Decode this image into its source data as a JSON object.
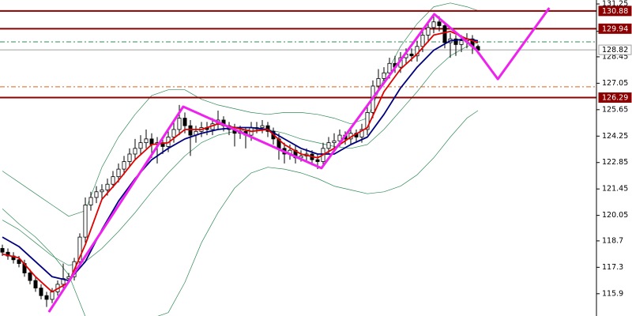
{
  "chart_data": {
    "type": "candlestick",
    "ylim": [
      114.72,
      131.46
    ],
    "xlim": [
      -0.43,
      107.43
    ],
    "yticks": [
      131.25,
      129.8,
      128.45,
      127.05,
      125.65,
      124.25,
      122.85,
      121.45,
      120.05,
      118.7,
      117.3,
      115.9
    ],
    "up_color": "#ffffff",
    "down_color": "#000000",
    "outline_color": "#000000",
    "ohlc": [
      [
        118.3,
        118.5,
        117.9,
        118.1
      ],
      [
        118.1,
        118.3,
        117.7,
        117.9
      ],
      [
        117.9,
        118.1,
        117.5,
        117.7
      ],
      [
        117.7,
        117.9,
        117.3,
        117.5
      ],
      [
        117.5,
        117.7,
        116.8,
        117.0
      ],
      [
        117.0,
        117.2,
        116.4,
        116.6
      ],
      [
        116.6,
        116.8,
        116.0,
        116.2
      ],
      [
        116.2,
        116.4,
        115.6,
        115.8
      ],
      [
        115.8,
        116.0,
        115.2,
        115.6
      ],
      [
        115.6,
        116.2,
        115.4,
        116.0
      ],
      [
        116.0,
        116.6,
        115.8,
        116.4
      ],
      [
        116.4,
        117.5,
        116.2,
        116.7
      ],
      [
        116.7,
        117.0,
        116.5,
        116.8
      ],
      [
        116.8,
        117.8,
        116.6,
        117.6
      ],
      [
        117.6,
        119.1,
        117.4,
        118.9
      ],
      [
        118.9,
        121.0,
        118.6,
        120.6
      ],
      [
        120.6,
        121.3,
        120.3,
        121.0
      ],
      [
        121.0,
        121.6,
        120.7,
        121.3
      ],
      [
        121.3,
        121.7,
        120.9,
        121.4
      ],
      [
        121.4,
        122.0,
        121.1,
        121.7
      ],
      [
        121.7,
        122.4,
        121.5,
        122.1
      ],
      [
        122.1,
        122.8,
        121.8,
        122.5
      ],
      [
        122.5,
        123.2,
        122.2,
        122.9
      ],
      [
        122.9,
        123.6,
        122.6,
        123.3
      ],
      [
        123.3,
        124.1,
        123.0,
        123.6
      ],
      [
        123.6,
        124.3,
        123.3,
        123.9
      ],
      [
        123.9,
        124.6,
        123.6,
        124.1
      ],
      [
        124.1,
        124.4,
        123.1,
        123.8
      ],
      [
        123.8,
        124.2,
        122.8,
        123.9
      ],
      [
        123.9,
        124.1,
        123.3,
        123.7
      ],
      [
        123.7,
        124.5,
        123.4,
        124.2
      ],
      [
        124.2,
        125.0,
        123.9,
        124.6
      ],
      [
        124.6,
        125.9,
        124.3,
        125.2
      ],
      [
        125.2,
        125.5,
        124.4,
        124.8
      ],
      [
        124.8,
        125.1,
        123.2,
        124.3
      ],
      [
        124.3,
        124.8,
        123.9,
        124.5
      ],
      [
        124.5,
        125.0,
        124.2,
        124.7
      ],
      [
        124.7,
        125.0,
        124.3,
        124.6
      ],
      [
        124.6,
        125.2,
        124.3,
        124.9
      ],
      [
        124.9,
        125.6,
        124.6,
        125.1
      ],
      [
        125.1,
        125.3,
        124.5,
        124.8
      ],
      [
        124.8,
        125.0,
        124.3,
        124.6
      ],
      [
        124.6,
        124.9,
        123.7,
        124.4
      ],
      [
        124.4,
        124.8,
        124.1,
        124.5
      ],
      [
        124.5,
        124.7,
        123.6,
        124.3
      ],
      [
        124.3,
        125.0,
        124.0,
        124.7
      ],
      [
        124.7,
        125.0,
        124.4,
        124.7
      ],
      [
        124.7,
        125.1,
        124.4,
        124.8
      ],
      [
        124.8,
        125.0,
        124.2,
        124.5
      ],
      [
        124.5,
        124.7,
        123.8,
        124.1
      ],
      [
        124.1,
        124.4,
        123.0,
        123.6
      ],
      [
        123.6,
        123.9,
        122.8,
        123.3
      ],
      [
        123.3,
        123.8,
        123.0,
        123.5
      ],
      [
        123.5,
        123.8,
        122.8,
        123.1
      ],
      [
        123.1,
        123.5,
        122.9,
        123.2
      ],
      [
        123.2,
        123.6,
        122.9,
        123.3
      ],
      [
        123.3,
        123.5,
        122.7,
        123.0
      ],
      [
        123.0,
        123.3,
        122.5,
        122.9
      ],
      [
        122.9,
        123.9,
        122.7,
        123.6
      ],
      [
        123.6,
        124.2,
        123.3,
        123.9
      ],
      [
        123.9,
        124.4,
        123.6,
        124.0
      ],
      [
        124.0,
        124.6,
        123.7,
        124.3
      ],
      [
        124.3,
        124.5,
        123.8,
        124.1
      ],
      [
        124.1,
        124.7,
        123.8,
        124.4
      ],
      [
        124.4,
        124.6,
        123.9,
        124.2
      ],
      [
        124.2,
        124.9,
        123.9,
        124.6
      ],
      [
        124.6,
        125.8,
        124.3,
        125.5
      ],
      [
        125.5,
        127.2,
        125.2,
        126.9
      ],
      [
        126.9,
        127.8,
        126.6,
        127.3
      ],
      [
        127.3,
        127.9,
        127.0,
        127.6
      ],
      [
        127.6,
        128.4,
        127.3,
        128.1
      ],
      [
        128.1,
        128.5,
        127.6,
        127.9
      ],
      [
        127.9,
        128.7,
        127.6,
        128.4
      ],
      [
        128.4,
        128.9,
        128.1,
        128.6
      ],
      [
        128.6,
        128.9,
        128.2,
        128.5
      ],
      [
        128.5,
        129.3,
        128.2,
        129.0
      ],
      [
        129.0,
        129.9,
        128.7,
        129.6
      ],
      [
        129.6,
        130.3,
        129.3,
        130.0
      ],
      [
        130.0,
        130.7,
        129.7,
        130.3
      ],
      [
        130.3,
        130.6,
        129.8,
        130.1
      ],
      [
        130.1,
        130.3,
        128.9,
        129.2
      ],
      [
        129.2,
        129.7,
        128.4,
        129.4
      ],
      [
        129.4,
        129.6,
        128.5,
        129.1
      ],
      [
        129.1,
        129.6,
        128.7,
        129.3
      ],
      [
        129.3,
        129.7,
        128.9,
        129.4
      ],
      [
        129.4,
        129.6,
        128.6,
        129.0
      ],
      [
        129.0,
        129.1,
        128.6,
        128.8
      ]
    ],
    "lines": [
      {
        "color": "#2e8b57",
        "width": 0.7,
        "x": [
          0,
          3,
          6,
          9,
          12,
          15,
          18,
          21,
          24,
          27,
          30,
          33,
          36,
          39,
          42,
          45,
          48,
          51,
          54,
          57,
          60,
          63,
          66,
          69,
          72,
          75,
          78,
          81,
          84,
          86
        ],
        "values": [
          122.4,
          121.8,
          121.2,
          120.6,
          120.0,
          120.3,
          122.6,
          124.2,
          125.4,
          126.4,
          126.7,
          126.7,
          126.2,
          125.9,
          125.7,
          125.5,
          125.4,
          125.5,
          125.5,
          125.4,
          125.2,
          124.9,
          125.2,
          127.3,
          129.0,
          130.2,
          131.1,
          131.3,
          131.1,
          130.9
        ]
      },
      {
        "color": "#2e8b57",
        "width": 0.7,
        "x": [
          0,
          3,
          6,
          9,
          12,
          15,
          18,
          21,
          24,
          27,
          30,
          33,
          36,
          39,
          42,
          45,
          48,
          51,
          54,
          57,
          60,
          63,
          66,
          69,
          72,
          75,
          78,
          81,
          84,
          86
        ],
        "values": [
          119.8,
          119.3,
          118.6,
          117.9,
          117.4,
          117.6,
          118.3,
          119.2,
          120.2,
          121.3,
          122.3,
          123.2,
          123.9,
          124.3,
          124.5,
          124.6,
          124.6,
          124.4,
          124.1,
          123.9,
          123.7,
          123.6,
          123.8,
          124.6,
          125.6,
          126.6,
          127.7,
          128.5,
          129.0,
          129.2
        ]
      },
      {
        "color": "#2e8b57",
        "width": 0.7,
        "x": [
          0,
          3,
          6,
          9,
          12,
          15,
          18,
          21,
          24,
          27,
          30,
          33,
          36,
          39,
          42,
          45,
          48,
          51,
          54,
          57,
          60,
          63,
          66,
          69,
          72,
          75,
          78,
          81,
          84,
          86
        ],
        "values": [
          120.4,
          119.6,
          118.9,
          118.0,
          116.9,
          114.7,
          114.3,
          114.3,
          114.4,
          114.6,
          114.9,
          116.5,
          118.6,
          120.2,
          121.5,
          122.3,
          122.6,
          122.5,
          122.3,
          122.0,
          121.6,
          121.4,
          121.2,
          121.3,
          121.6,
          122.2,
          123.1,
          124.2,
          125.2,
          125.6
        ]
      },
      {
        "color": "#000080",
        "width": 1.8,
        "x": [
          0,
          3,
          6,
          9,
          12,
          15,
          18,
          21,
          24,
          27,
          30,
          33,
          36,
          39,
          42,
          45,
          48,
          51,
          54,
          57,
          60,
          63,
          66,
          69,
          72,
          75,
          78,
          81,
          84,
          86
        ],
        "values": [
          118.9,
          118.4,
          117.6,
          116.8,
          116.6,
          117.6,
          119.3,
          120.8,
          122.0,
          123.0,
          123.6,
          124.1,
          124.4,
          124.6,
          124.7,
          124.7,
          124.6,
          124.1,
          123.6,
          123.3,
          123.3,
          123.8,
          124.2,
          125.4,
          126.8,
          127.9,
          128.8,
          129.3,
          129.4,
          129.3
        ]
      },
      {
        "color": "#e00000",
        "width": 1.8,
        "x": [
          0,
          3,
          6,
          9,
          12,
          15,
          18,
          21,
          24,
          27,
          30,
          33,
          36,
          39,
          42,
          45,
          48,
          51,
          54,
          57,
          60,
          63,
          66,
          69,
          72,
          75,
          78,
          81,
          84,
          86
        ],
        "values": [
          118.0,
          117.8,
          116.8,
          116.0,
          116.5,
          118.5,
          120.9,
          121.9,
          123.0,
          123.8,
          123.9,
          124.6,
          124.6,
          124.9,
          124.7,
          124.5,
          124.6,
          123.8,
          123.3,
          123.1,
          123.6,
          124.2,
          124.7,
          126.6,
          127.8,
          128.6,
          129.6,
          129.8,
          129.4,
          129.2
        ]
      },
      {
        "color": "#ee22ee",
        "width": 3,
        "x": [
          8.4,
          32.7,
          57.7,
          78.1,
          85.7,
          89.6,
          98.9
        ],
        "values": [
          114.93,
          125.81,
          122.55,
          130.71,
          128.82,
          127.27,
          131.04
        ]
      }
    ],
    "levels": [
      {
        "value": 130.88,
        "color": "#8b0000",
        "style": "solid",
        "label_bg": "#8b0000"
      },
      {
        "value": 129.94,
        "color": "#8b0000",
        "style": "solid",
        "label_bg": "#8b0000"
      },
      {
        "value": 129.24,
        "color": "#2e8b57",
        "style": "dashdot"
      },
      {
        "value": 128.82,
        "color": "#a0a0a0",
        "style": "solid",
        "label_bg": "#ffffff"
      },
      {
        "value": 126.86,
        "color": "#e0601a",
        "style": "dashdot"
      },
      {
        "value": 126.29,
        "color": "#8b0000",
        "style": "solid",
        "label_bg": "#8b0000"
      }
    ]
  }
}
